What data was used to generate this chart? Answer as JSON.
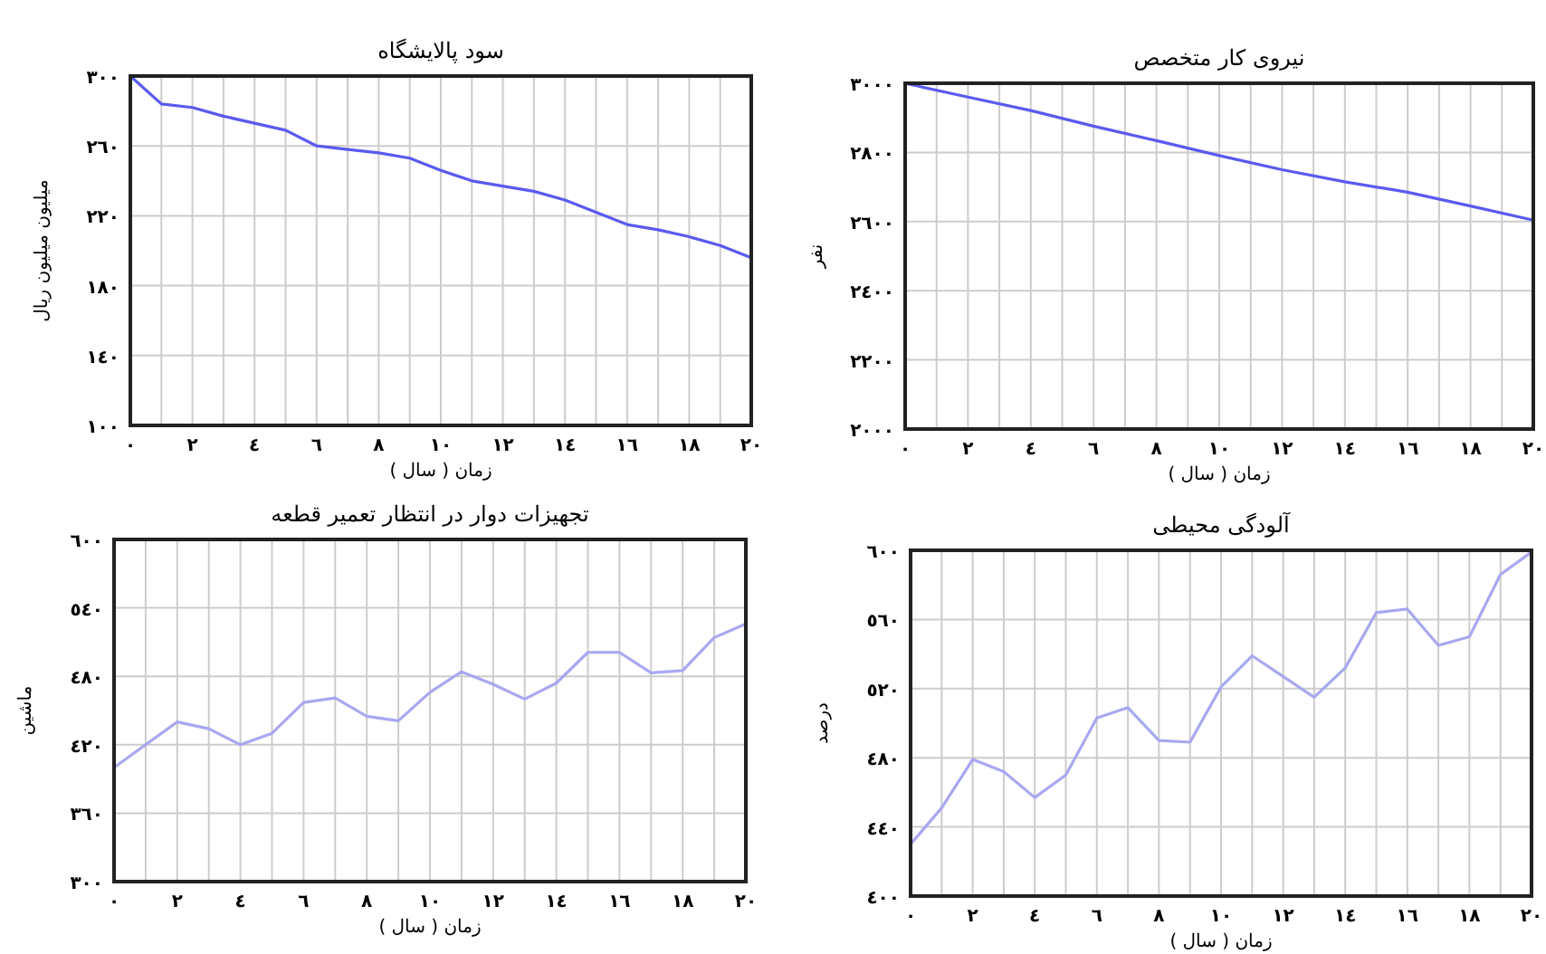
{
  "chart_data": [
    {
      "type": "line",
      "title": "سود پالایشگاه",
      "xlabel": "زمان ( سال )",
      "ylabel": "میلیون میلیون ریال",
      "grid": true,
      "x": [
        0,
        1,
        2,
        3,
        4,
        5,
        6,
        7,
        8,
        9,
        10,
        11,
        12,
        13,
        14,
        15,
        16,
        17,
        18,
        19,
        20
      ],
      "series": [
        {
          "color": "#5a5af0",
          "values": [
            300,
            284,
            282,
            277,
            273,
            269,
            260,
            258,
            256,
            253,
            246,
            240,
            237,
            234,
            229,
            222,
            215,
            212,
            208,
            203,
            196
          ]
        }
      ],
      "xlim": [
        0,
        20
      ],
      "ylim": [
        100,
        300
      ],
      "xticks": [
        {
          "value": 0,
          "label": "٠"
        },
        {
          "value": 1,
          "label": null
        },
        {
          "value": 2,
          "label": "٢"
        },
        {
          "value": 3,
          "label": null
        },
        {
          "value": 4,
          "label": "٤"
        },
        {
          "value": 5,
          "label": null
        },
        {
          "value": 6,
          "label": "٦"
        },
        {
          "value": 7,
          "label": null
        },
        {
          "value": 8,
          "label": "٨"
        },
        {
          "value": 9,
          "label": null
        },
        {
          "value": 10,
          "label": "١٠"
        },
        {
          "value": 11,
          "label": null
        },
        {
          "value": 12,
          "label": "١٢"
        },
        {
          "value": 13,
          "label": null
        },
        {
          "value": 14,
          "label": "١٤"
        },
        {
          "value": 15,
          "label": null
        },
        {
          "value": 16,
          "label": "١٦"
        },
        {
          "value": 17,
          "label": null
        },
        {
          "value": 18,
          "label": "١٨"
        },
        {
          "value": 19,
          "label": null
        },
        {
          "value": 20,
          "label": "٢٠"
        }
      ],
      "yticks": [
        {
          "value": 100,
          "label": "١٠٠"
        },
        {
          "value": 140,
          "label": "١٤٠"
        },
        {
          "value": 180,
          "label": "١٨٠"
        },
        {
          "value": 220,
          "label": "٢٢٠"
        },
        {
          "value": 260,
          "label": "٢٦٠"
        },
        {
          "value": 300,
          "label": "٣٠٠"
        }
      ]
    },
    {
      "type": "line",
      "title": "نیروی کار متخصص",
      "xlabel": "زمان ( سال )",
      "ylabel": "نفر",
      "grid": true,
      "x": [
        0,
        2,
        4,
        6,
        8,
        10,
        12,
        14,
        16,
        18,
        20
      ],
      "series": [
        {
          "color": "#5a5af0",
          "values": [
            3000,
            2960,
            2921,
            2876,
            2834,
            2791,
            2750,
            2715,
            2685,
            2645,
            2604
          ]
        }
      ],
      "xlim": [
        0,
        20
      ],
      "ylim": [
        2000,
        3000
      ],
      "xticks": [
        {
          "value": 0,
          "label": "٠"
        },
        {
          "value": 1,
          "label": null
        },
        {
          "value": 2,
          "label": "٢"
        },
        {
          "value": 3,
          "label": null
        },
        {
          "value": 4,
          "label": "٤"
        },
        {
          "value": 5,
          "label": null
        },
        {
          "value": 6,
          "label": "٦"
        },
        {
          "value": 7,
          "label": null
        },
        {
          "value": 8,
          "label": "٨"
        },
        {
          "value": 9,
          "label": null
        },
        {
          "value": 10,
          "label": "١٠"
        },
        {
          "value": 11,
          "label": null
        },
        {
          "value": 12,
          "label": "١٢"
        },
        {
          "value": 13,
          "label": null
        },
        {
          "value": 14,
          "label": "١٤"
        },
        {
          "value": 15,
          "label": null
        },
        {
          "value": 16,
          "label": "١٦"
        },
        {
          "value": 17,
          "label": null
        },
        {
          "value": 18,
          "label": "١٨"
        },
        {
          "value": 19,
          "label": null
        },
        {
          "value": 20,
          "label": "٢٠"
        }
      ],
      "yticks": [
        {
          "value": 2000,
          "label": "٢٠٠٠"
        },
        {
          "value": 2200,
          "label": "٢٢٠٠"
        },
        {
          "value": 2400,
          "label": "٢٤٠٠"
        },
        {
          "value": 2600,
          "label": "٢٦٠٠"
        },
        {
          "value": 2800,
          "label": "٢٨٠٠"
        },
        {
          "value": 3000,
          "label": "٣٠٠٠"
        }
      ]
    },
    {
      "type": "line",
      "title": "تجهیزات دوار در انتظار تعمیر قطعه",
      "xlabel": "زمان ( سال )",
      "ylabel": "ماشین",
      "grid": true,
      "x": [
        0,
        1,
        2,
        3,
        4,
        5,
        6,
        7,
        8,
        9,
        10,
        11,
        12,
        13,
        14,
        15,
        16,
        17,
        18,
        19,
        20
      ],
      "series": [
        {
          "color": "#a8a8f0",
          "values": [
            400,
            420,
            440,
            434,
            420,
            430,
            457,
            461,
            445,
            441,
            466,
            484,
            473,
            460,
            474,
            501,
            501,
            483,
            485,
            514,
            526
          ]
        }
      ],
      "xlim": [
        0,
        20
      ],
      "ylim": [
        300,
        600
      ],
      "xticks": [
        {
          "value": 0,
          "label": "٠"
        },
        {
          "value": 1,
          "label": null
        },
        {
          "value": 2,
          "label": "٢"
        },
        {
          "value": 3,
          "label": null
        },
        {
          "value": 4,
          "label": "٤"
        },
        {
          "value": 5,
          "label": null
        },
        {
          "value": 6,
          "label": "٦"
        },
        {
          "value": 7,
          "label": null
        },
        {
          "value": 8,
          "label": "٨"
        },
        {
          "value": 9,
          "label": null
        },
        {
          "value": 10,
          "label": "١٠"
        },
        {
          "value": 11,
          "label": null
        },
        {
          "value": 12,
          "label": "١٢"
        },
        {
          "value": 13,
          "label": null
        },
        {
          "value": 14,
          "label": "١٤"
        },
        {
          "value": 15,
          "label": null
        },
        {
          "value": 16,
          "label": "١٦"
        },
        {
          "value": 17,
          "label": null
        },
        {
          "value": 18,
          "label": "١٨"
        },
        {
          "value": 19,
          "label": null
        },
        {
          "value": 20,
          "label": "٢٠"
        }
      ],
      "yticks": [
        {
          "value": 300,
          "label": "٣٠٠"
        },
        {
          "value": 360,
          "label": "٣٦٠"
        },
        {
          "value": 420,
          "label": "٤٢٠"
        },
        {
          "value": 480,
          "label": "٤٨٠"
        },
        {
          "value": 540,
          "label": "٥٤٠"
        },
        {
          "value": 600,
          "label": "٦٠٠"
        }
      ]
    },
    {
      "type": "line",
      "title": "آلودگی محیطی",
      "xlabel": "زمان ( سال )",
      "ylabel": "درصد",
      "grid": true,
      "x": [
        0,
        1,
        2,
        3,
        4,
        5,
        6,
        7,
        8,
        9,
        10,
        11,
        12,
        13,
        14,
        15,
        16,
        17,
        18,
        19,
        20
      ],
      "series": [
        {
          "color": "#a8a8f0",
          "values": [
            430,
            451,
            479,
            472,
            457,
            470,
            503,
            509,
            490,
            489,
            521,
            539,
            527,
            515,
            532,
            564,
            566,
            545,
            550,
            586,
            599
          ]
        }
      ],
      "xlim": [
        0,
        20
      ],
      "ylim": [
        400,
        600
      ],
      "xticks": [
        {
          "value": 0,
          "label": "٠"
        },
        {
          "value": 1,
          "label": null
        },
        {
          "value": 2,
          "label": "٢"
        },
        {
          "value": 3,
          "label": null
        },
        {
          "value": 4,
          "label": "٤"
        },
        {
          "value": 5,
          "label": null
        },
        {
          "value": 6,
          "label": "٦"
        },
        {
          "value": 7,
          "label": null
        },
        {
          "value": 8,
          "label": "٨"
        },
        {
          "value": 9,
          "label": null
        },
        {
          "value": 10,
          "label": "١٠"
        },
        {
          "value": 11,
          "label": null
        },
        {
          "value": 12,
          "label": "١٢"
        },
        {
          "value": 13,
          "label": null
        },
        {
          "value": 14,
          "label": "١٤"
        },
        {
          "value": 15,
          "label": null
        },
        {
          "value": 16,
          "label": "١٦"
        },
        {
          "value": 17,
          "label": null
        },
        {
          "value": 18,
          "label": "١٨"
        },
        {
          "value": 19,
          "label": null
        },
        {
          "value": 20,
          "label": "٢٠"
        }
      ],
      "yticks": [
        {
          "value": 400,
          "label": "٤٠٠"
        },
        {
          "value": 440,
          "label": "٤٤٠"
        },
        {
          "value": 480,
          "label": "٤٨٠"
        },
        {
          "value": 520,
          "label": "٥٢٠"
        },
        {
          "value": 560,
          "label": "٥٦٠"
        },
        {
          "value": 600,
          "label": "٦٠٠"
        }
      ]
    }
  ]
}
